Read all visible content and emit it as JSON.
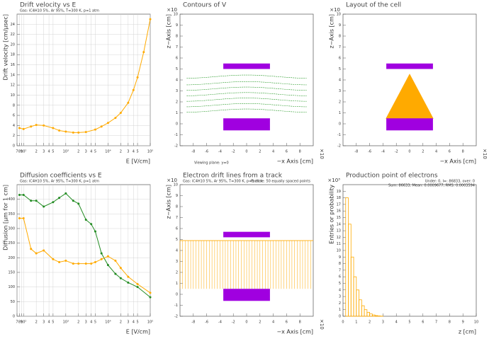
{
  "chart_data": [
    {
      "type": "line",
      "title": "Drift velocity vs E",
      "subtitle": "Gas: iC4H10 5%, Ar 95%, T=300 K, p=1 atm",
      "x_label": "E [V/cm]",
      "y_label": "Drift velocity [cm/μsec]",
      "xlog": true,
      "grid": true,
      "x": [
        80,
        100,
        150,
        200,
        300,
        500,
        700,
        1000,
        1500,
        2000,
        3000,
        5000,
        7000,
        10000,
        15000,
        20000,
        30000,
        40000,
        50000,
        70000,
        100000
      ],
      "series": [
        {
          "color": "#ffaa00",
          "values": [
            3.5,
            3.3,
            3.8,
            4.1,
            4.0,
            3.5,
            3.0,
            2.8,
            2.6,
            2.6,
            2.7,
            3.2,
            3.8,
            4.5,
            5.5,
            6.5,
            8.5,
            11,
            13.5,
            18.5,
            25
          ]
        }
      ],
      "xlim": [
        70,
        100000
      ],
      "ylim": [
        0,
        26
      ],
      "xticks": [
        {
          "value": 70,
          "label": "7"
        },
        {
          "value": 80,
          "label": "8"
        },
        {
          "value": 90,
          "label": "9"
        },
        {
          "value": 100,
          "label": "10²"
        },
        {
          "value": 200,
          "label": "2"
        },
        {
          "value": 300,
          "label": "3"
        },
        {
          "value": 400,
          "label": "4"
        },
        {
          "value": 500,
          "label": "5"
        },
        {
          "value": 1000,
          "label": "10³"
        },
        {
          "value": 2000,
          "label": "2"
        },
        {
          "value": 3000,
          "label": "3"
        },
        {
          "value": 4000,
          "label": "4"
        },
        {
          "value": 5000,
          "label": "5"
        },
        {
          "value": 10000,
          "label": "10⁴"
        },
        {
          "value": 20000,
          "label": "2"
        },
        {
          "value": 30000,
          "label": "3"
        },
        {
          "value": 40000,
          "label": "4"
        },
        {
          "value": 50000,
          "label": "5"
        },
        {
          "value": 100000,
          "label": "10⁵"
        }
      ],
      "yticks": [
        0,
        2,
        4,
        6,
        8,
        10,
        12,
        14,
        16,
        18,
        20,
        22,
        24
      ]
    },
    {
      "type": "contour",
      "title": "Contours of V",
      "x_label": "−x Axis [cm]",
      "y_label": "z−Axis [cm]",
      "x_multiplier": "×10",
      "y_multiplier": "×10",
      "note": "Viewing plane: y=0",
      "xlim": [
        -10,
        10
      ],
      "ylim": [
        -2,
        10
      ],
      "xticks": [
        -8,
        -6,
        -4,
        -2,
        0,
        2,
        4,
        6,
        8
      ],
      "yticks": [
        -2,
        -1,
        0,
        1,
        2,
        3,
        4,
        5,
        6,
        7,
        8,
        9,
        10
      ]
    },
    {
      "type": "layout",
      "title": "Layout of the cell",
      "x_label": "−x Axis [cm]",
      "y_label": "z−Axis [cm]",
      "x_multiplier": "×10",
      "y_multiplier": "×10",
      "xlim": [
        -10,
        10
      ],
      "ylim": [
        -2,
        10
      ],
      "xticks": [
        -8,
        -6,
        -4,
        -2,
        0,
        2,
        4,
        6,
        8
      ],
      "yticks": [
        -2,
        -1,
        0,
        1,
        2,
        3,
        4,
        5,
        6,
        7,
        8,
        9,
        10
      ]
    },
    {
      "type": "line",
      "title": "Diffusion coefficients vs E",
      "subtitle": "Gas: iC4H10 5%, Ar 95%, T=300 K, p=1 atm",
      "x_label": "E [V/cm]",
      "y_label": "Diffusion [μm for 1 cm]",
      "xlog": true,
      "grid": true,
      "x": [
        80,
        100,
        150,
        200,
        300,
        500,
        700,
        1000,
        1500,
        2000,
        3000,
        4000,
        5000,
        7000,
        10000,
        15000,
        20000,
        30000,
        50000,
        100000
      ],
      "series": [
        {
          "color": "#228b22",
          "values": [
            415,
            415,
            395,
            395,
            375,
            390,
            405,
            420,
            395,
            385,
            330,
            315,
            290,
            215,
            175,
            145,
            130,
            115,
            100,
            65
          ]
        },
        {
          "color": "#ffaa00",
          "values": [
            335,
            335,
            230,
            215,
            225,
            195,
            185,
            190,
            180,
            180,
            180,
            180,
            185,
            195,
            205,
            190,
            165,
            135,
            110,
            80
          ]
        }
      ],
      "xlim": [
        70,
        100000
      ],
      "ylim": [
        0,
        450
      ],
      "xticks": [
        {
          "value": 70,
          "label": "7"
        },
        {
          "value": 80,
          "label": "8"
        },
        {
          "value": 90,
          "label": "9"
        },
        {
          "value": 100,
          "label": "10²"
        },
        {
          "value": 200,
          "label": "2"
        },
        {
          "value": 300,
          "label": "3"
        },
        {
          "value": 400,
          "label": "4"
        },
        {
          "value": 500,
          "label": "5"
        },
        {
          "value": 1000,
          "label": "10³"
        },
        {
          "value": 2000,
          "label": "2"
        },
        {
          "value": 3000,
          "label": "3"
        },
        {
          "value": 4000,
          "label": "4"
        },
        {
          "value": 5000,
          "label": "5"
        },
        {
          "value": 10000,
          "label": "10⁴"
        },
        {
          "value": 20000,
          "label": "2"
        },
        {
          "value": 30000,
          "label": "3"
        },
        {
          "value": 40000,
          "label": "4"
        },
        {
          "value": 50000,
          "label": "5"
        },
        {
          "value": 100000,
          "label": "10⁵"
        }
      ],
      "yticks": [
        0,
        50,
        100,
        150,
        200,
        250,
        300,
        350,
        400
      ]
    },
    {
      "type": "driftlines",
      "title": "Electron drift lines from a track",
      "subtitle": "Gas: iC4H10 5%, Ar 95%, T=300 K, p=1 atm",
      "note": "Particle: 50 equally spaced points",
      "x_label": "−x Axis [cm]",
      "y_label": "z−Axis [cm]",
      "x_multiplier": "×10",
      "y_multiplier": "×10",
      "xlim": [
        -10,
        10
      ],
      "ylim": [
        -2,
        10
      ],
      "xticks": [
        -8,
        -6,
        -4,
        -2,
        0,
        2,
        4,
        6,
        8
      ],
      "yticks": [
        -2,
        -1,
        0,
        1,
        2,
        3,
        4,
        5,
        6,
        7,
        8,
        9,
        10
      ]
    },
    {
      "type": "histogram",
      "title": "Production point of electrons",
      "x_label": "z [cm]",
      "y_label": "Entries or probability",
      "y_multiplier": "×10³",
      "stats": [
        "Under: 0, I=: 86833, over: 0",
        "Sum: 86633, Mean: 0.0009677, RMS: 0.0003594"
      ],
      "color": "#ffaa00",
      "bins": [
        0,
        0.2,
        0.4,
        0.6,
        0.8,
        1.0,
        1.2,
        1.4,
        1.6,
        1.8,
        2.0,
        2.2,
        2.4,
        2.6,
        2.8,
        3.0
      ],
      "values": [
        0,
        18,
        14,
        9,
        6,
        4,
        2.5,
        1.6,
        1.0,
        0.6,
        0.35,
        0.2,
        0.1,
        0.05,
        0.02
      ],
      "xlim": [
        0,
        10
      ],
      "ylim": [
        0,
        20
      ],
      "xticks": [
        0,
        1,
        2,
        3,
        4,
        5,
        6,
        7,
        8,
        9,
        10
      ],
      "yticks": [
        0,
        1,
        2,
        3,
        4,
        5,
        6,
        7,
        8,
        9,
        10,
        11,
        12,
        13,
        14,
        15,
        16,
        17,
        18,
        19
      ]
    }
  ]
}
